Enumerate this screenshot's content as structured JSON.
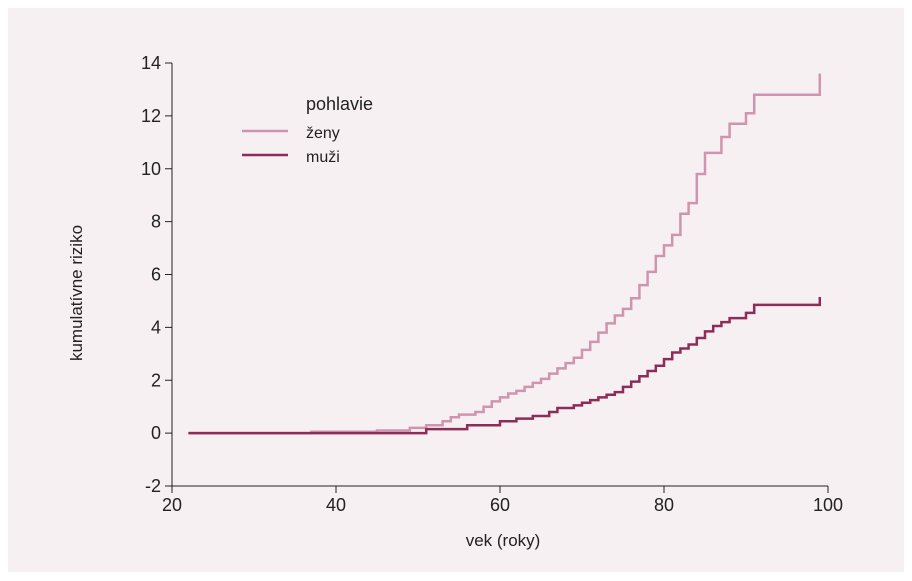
{
  "chart_data": {
    "type": "line",
    "title": "",
    "xlabel": "vek (roky)",
    "ylabel": "kumulatívne riziko",
    "xlim": [
      20,
      100
    ],
    "ylim": [
      -2,
      14
    ],
    "xticks": [
      20,
      40,
      60,
      80,
      100
    ],
    "yticks": [
      -2,
      0,
      2,
      4,
      6,
      8,
      10,
      12,
      14
    ],
    "grid": false,
    "legend": {
      "title": "pohlavie",
      "placement": "top-left"
    },
    "step": true,
    "series": [
      {
        "name": "ženy",
        "color": "#d095ae",
        "x": [
          22,
          37,
          45,
          49,
          51,
          53,
          54,
          55,
          57,
          58,
          59,
          60,
          61,
          62,
          63,
          64,
          65,
          66,
          67,
          68,
          69,
          70,
          71,
          72,
          73,
          74,
          75,
          76,
          77,
          78,
          79,
          80,
          81,
          82,
          83,
          84,
          85,
          87,
          88,
          90,
          91,
          99
        ],
        "y": [
          0.0,
          0.05,
          0.1,
          0.2,
          0.3,
          0.45,
          0.6,
          0.7,
          0.8,
          1.0,
          1.2,
          1.35,
          1.5,
          1.6,
          1.75,
          1.9,
          2.05,
          2.25,
          2.45,
          2.65,
          2.85,
          3.15,
          3.45,
          3.8,
          4.15,
          4.45,
          4.7,
          5.1,
          5.6,
          6.1,
          6.7,
          7.1,
          7.5,
          8.3,
          8.7,
          9.8,
          10.6,
          11.2,
          11.7,
          12.1,
          12.8,
          13.6
        ]
      },
      {
        "name": "muži",
        "color": "#8c2c57",
        "x": [
          22,
          51,
          56,
          60,
          62,
          64,
          66,
          67,
          69,
          70,
          71,
          72,
          73,
          74,
          75,
          76,
          77,
          78,
          79,
          80,
          81,
          82,
          83,
          84,
          85,
          86,
          87,
          88,
          90,
          91,
          99
        ],
        "y": [
          0.0,
          0.15,
          0.3,
          0.45,
          0.55,
          0.65,
          0.8,
          0.95,
          1.05,
          1.15,
          1.25,
          1.35,
          1.45,
          1.55,
          1.75,
          1.95,
          2.15,
          2.35,
          2.55,
          2.8,
          3.05,
          3.2,
          3.35,
          3.6,
          3.85,
          4.05,
          4.2,
          4.35,
          4.55,
          4.85,
          5.15
        ]
      }
    ]
  }
}
